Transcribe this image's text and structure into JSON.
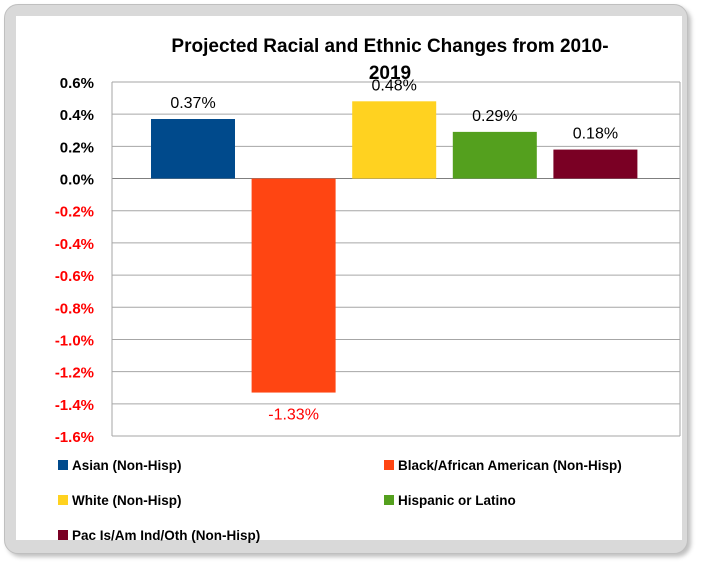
{
  "chart_data": {
    "type": "bar",
    "title": "Projected Racial and Ethnic Changes from 2010-2019",
    "categories": [
      "Asian (Non-Hisp)",
      "Black/African American (Non-Hisp)",
      "White (Non-Hisp)",
      "Hispanic or Latino",
      "Pac Is/Am Ind/Oth (Non-Hisp)"
    ],
    "values": [
      0.37,
      -1.33,
      0.48,
      0.29,
      0.18
    ],
    "data_labels": [
      "0.37%",
      "-1.33%",
      "0.48%",
      "0.29%",
      "0.18%"
    ],
    "colors": [
      "#004a8c",
      "#ff4512",
      "#ffd220",
      "#54a01e",
      "#7a0024"
    ],
    "negative_color": "#ff0000",
    "ylim": [
      -1.6,
      0.6
    ],
    "yticks": [
      0.6,
      0.4,
      0.2,
      0.0,
      -0.2,
      -0.4,
      -0.6,
      -0.8,
      -1.0,
      -1.2,
      -1.4,
      -1.6
    ],
    "ytick_labels": [
      "0.6%",
      "0.4%",
      "0.2%",
      "0.0%",
      "-0.2%",
      "-0.4%",
      "-0.6%",
      "-0.8%",
      "-1.0%",
      "-1.2%",
      "-1.4%",
      "-1.6%"
    ],
    "xlabel": "",
    "ylabel": "",
    "grid": true,
    "legend_position": "bottom"
  }
}
